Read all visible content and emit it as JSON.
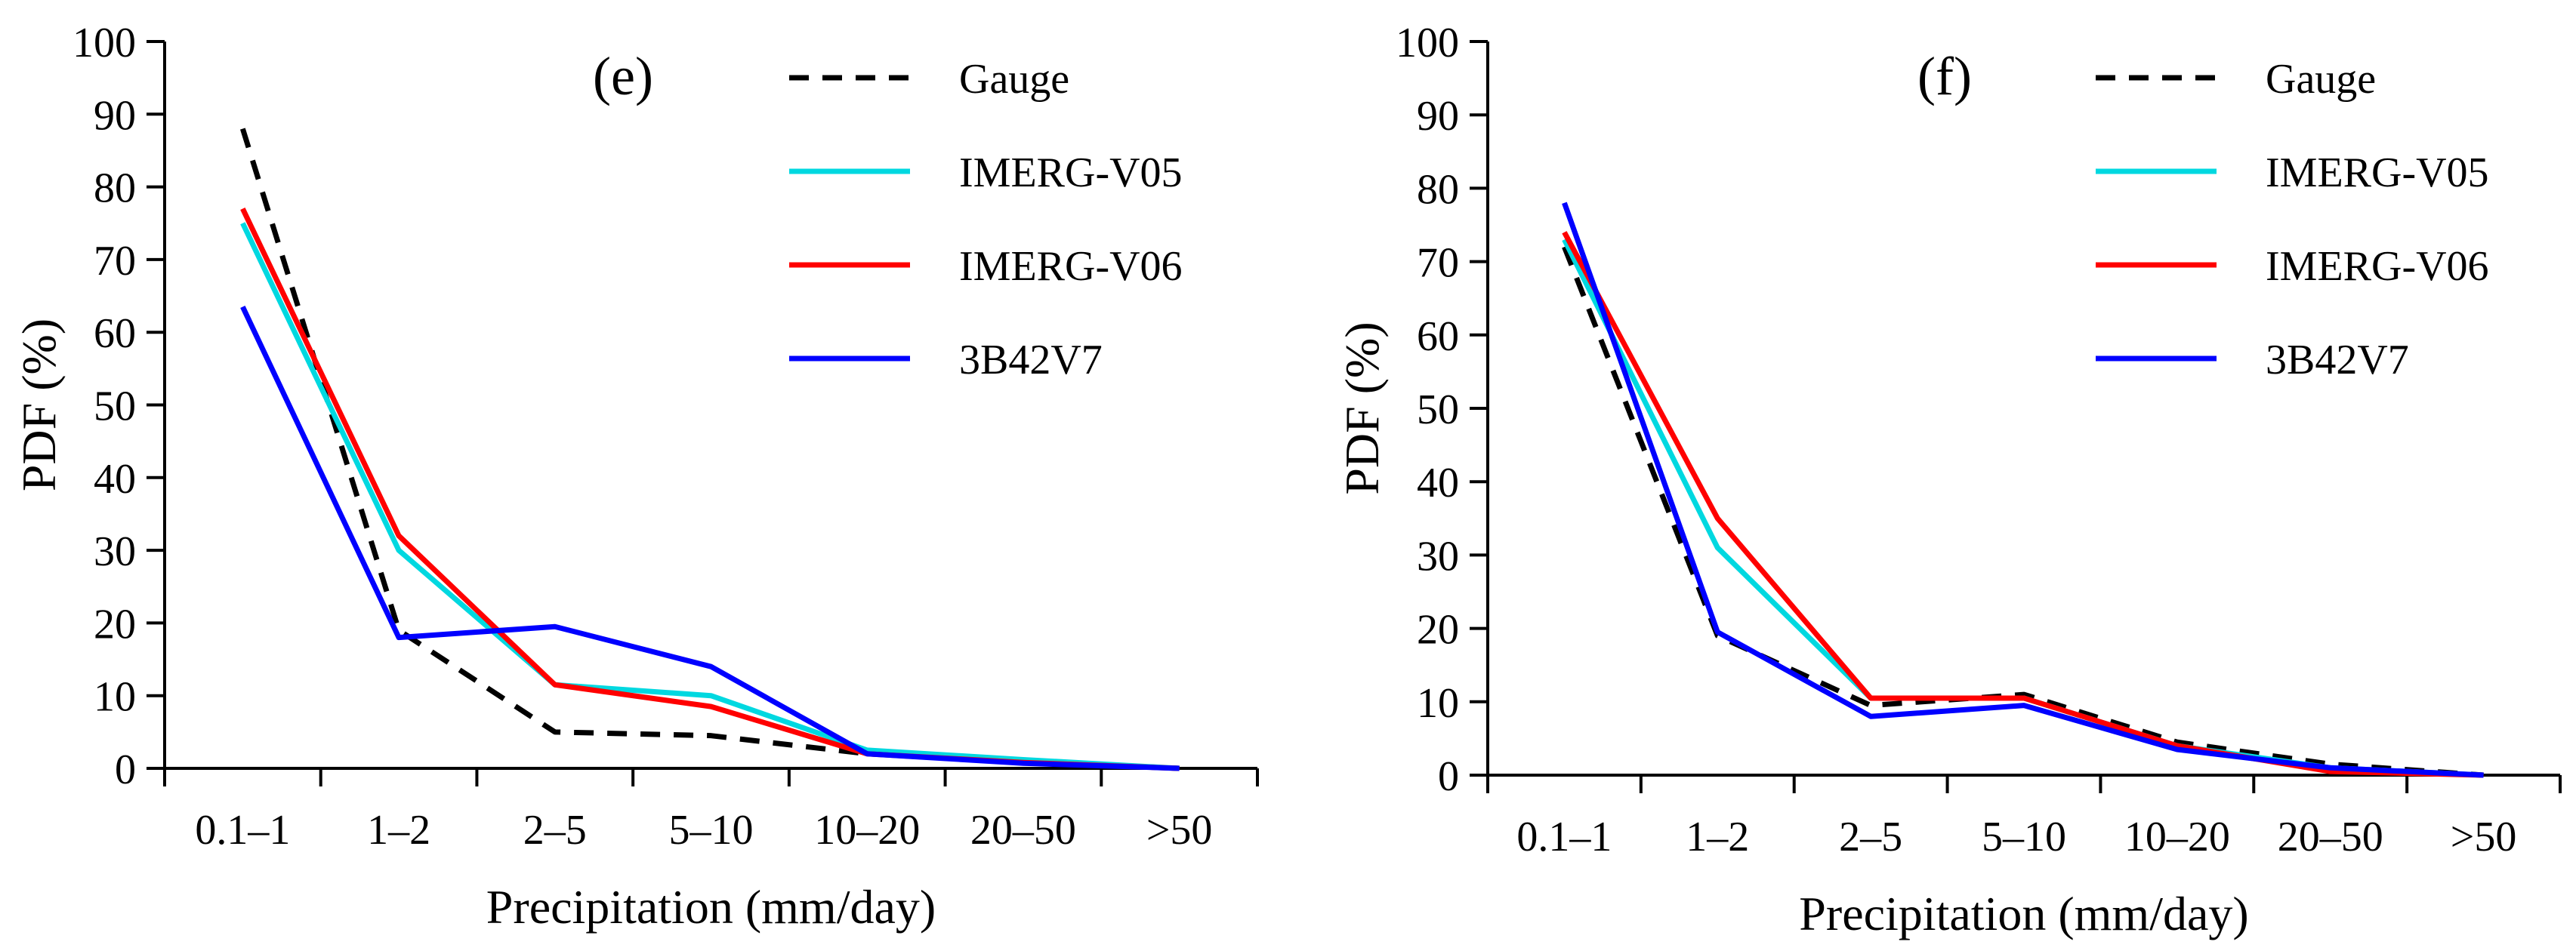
{
  "chart_data": [
    {
      "type": "line",
      "panel_label": "(e)",
      "categories": [
        "0.1–1",
        "1–2",
        "2–5",
        "5–10",
        "10–20",
        "20–50",
        ">50"
      ],
      "xlabel": "Precipitation (mm/day)",
      "ylabel": "PDF (%)",
      "ylim": [
        0,
        100
      ],
      "yticks": [
        "0",
        "10",
        "20",
        "30",
        "40",
        "50",
        "60",
        "70",
        "80",
        "90",
        "100"
      ],
      "grid": false,
      "legend_position": "top-right",
      "series": [
        {
          "name": "Gauge",
          "color": "#000000",
          "dashed": true,
          "values": [
            88,
            19,
            5,
            4.5,
            2,
            1,
            0
          ]
        },
        {
          "name": "IMERG-V05",
          "color": "#00d8e0",
          "dashed": false,
          "values": [
            75,
            30,
            11.5,
            10,
            2.5,
            1.2,
            0
          ]
        },
        {
          "name": "IMERG-V06",
          "color": "#ff0000",
          "dashed": false,
          "values": [
            77,
            32,
            11.5,
            8.5,
            2,
            0.8,
            0
          ]
        },
        {
          "name": "3B42V7",
          "color": "#0000ff",
          "dashed": false,
          "values": [
            63.5,
            18,
            19.5,
            14,
            2,
            0.7,
            0
          ]
        }
      ]
    },
    {
      "type": "line",
      "panel_label": "(f)",
      "categories": [
        "0.1–1",
        "1–2",
        "2–5",
        "5–10",
        "10–20",
        "20–50",
        ">50"
      ],
      "xlabel": "Precipitation (mm/day)",
      "ylabel": "PDF (%)",
      "ylim": [
        0,
        100
      ],
      "yticks": [
        "0",
        "10",
        "20",
        "30",
        "40",
        "50",
        "60",
        "70",
        "80",
        "90",
        "100"
      ],
      "grid": false,
      "legend_position": "top-right",
      "series": [
        {
          "name": "Gauge",
          "color": "#000000",
          "dashed": true,
          "values": [
            72,
            19,
            9.5,
            11,
            4.5,
            1.5,
            0
          ]
        },
        {
          "name": "IMERG-V05",
          "color": "#00d8e0",
          "dashed": false,
          "values": [
            73,
            31,
            10.5,
            10.5,
            4,
            1,
            0
          ]
        },
        {
          "name": "IMERG-V06",
          "color": "#ff0000",
          "dashed": false,
          "values": [
            74,
            35,
            10.5,
            10.5,
            4,
            0.5,
            0
          ]
        },
        {
          "name": "3B42V7",
          "color": "#0000ff",
          "dashed": false,
          "values": [
            78,
            19.5,
            8,
            9.5,
            3.5,
            1,
            0
          ]
        }
      ]
    }
  ]
}
